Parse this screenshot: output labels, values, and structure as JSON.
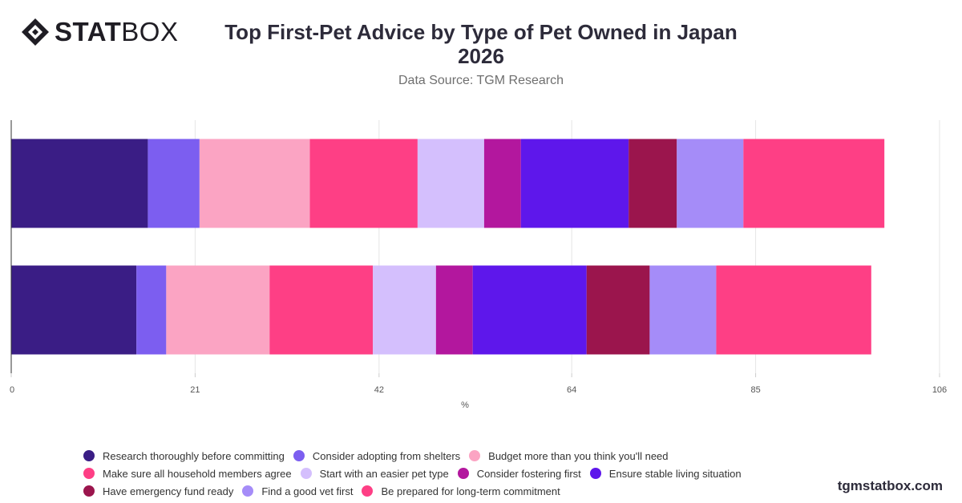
{
  "brand": {
    "logo_bold": "STAT",
    "logo_light": "BOX",
    "url": "tgmstatbox.com"
  },
  "chart_data": {
    "type": "bar",
    "orientation": "horizontal",
    "stacked": true,
    "title": "Top First-Pet Advice by Type of Pet Owned in Japan 2026",
    "subtitle": "Data Source: TGM Research",
    "xlabel": "%",
    "ylabel": "",
    "xlim": [
      0,
      106
    ],
    "xticks": [
      0,
      21,
      42,
      64,
      85,
      106
    ],
    "grid": true,
    "legend_position": "bottom",
    "categories": [
      "",
      ""
    ],
    "series": [
      {
        "name": "Research thoroughly before committing",
        "color": "#3a1d85",
        "values": [
          15.6,
          14.3
        ]
      },
      {
        "name": "Consider adopting from shelters",
        "color": "#7c5ef0",
        "values": [
          5.9,
          3.4
        ]
      },
      {
        "name": "Budget more than you think you'll need",
        "color": "#fba4c3",
        "values": [
          12.6,
          11.8
        ]
      },
      {
        "name": "Make sure all household members agree",
        "color": "#fe3f85",
        "values": [
          12.3,
          11.8
        ]
      },
      {
        "name": "Start with an easier pet type",
        "color": "#d4bffd",
        "values": [
          7.6,
          7.2
        ]
      },
      {
        "name": "Consider fostering first",
        "color": "#b3179e",
        "values": [
          4.2,
          4.2
        ]
      },
      {
        "name": "Ensure stable living situation",
        "color": "#5e17eb",
        "values": [
          12.3,
          13.0
        ]
      },
      {
        "name": "Have emergency fund ready",
        "color": "#9b154d",
        "values": [
          5.5,
          7.2
        ]
      },
      {
        "name": "Find a good vet first",
        "color": "#a58cf8",
        "values": [
          7.6,
          7.6
        ]
      },
      {
        "name": "Be prepared for long-term commitment",
        "color": "#fe3f85",
        "values": [
          16.1,
          17.7
        ]
      }
    ]
  }
}
